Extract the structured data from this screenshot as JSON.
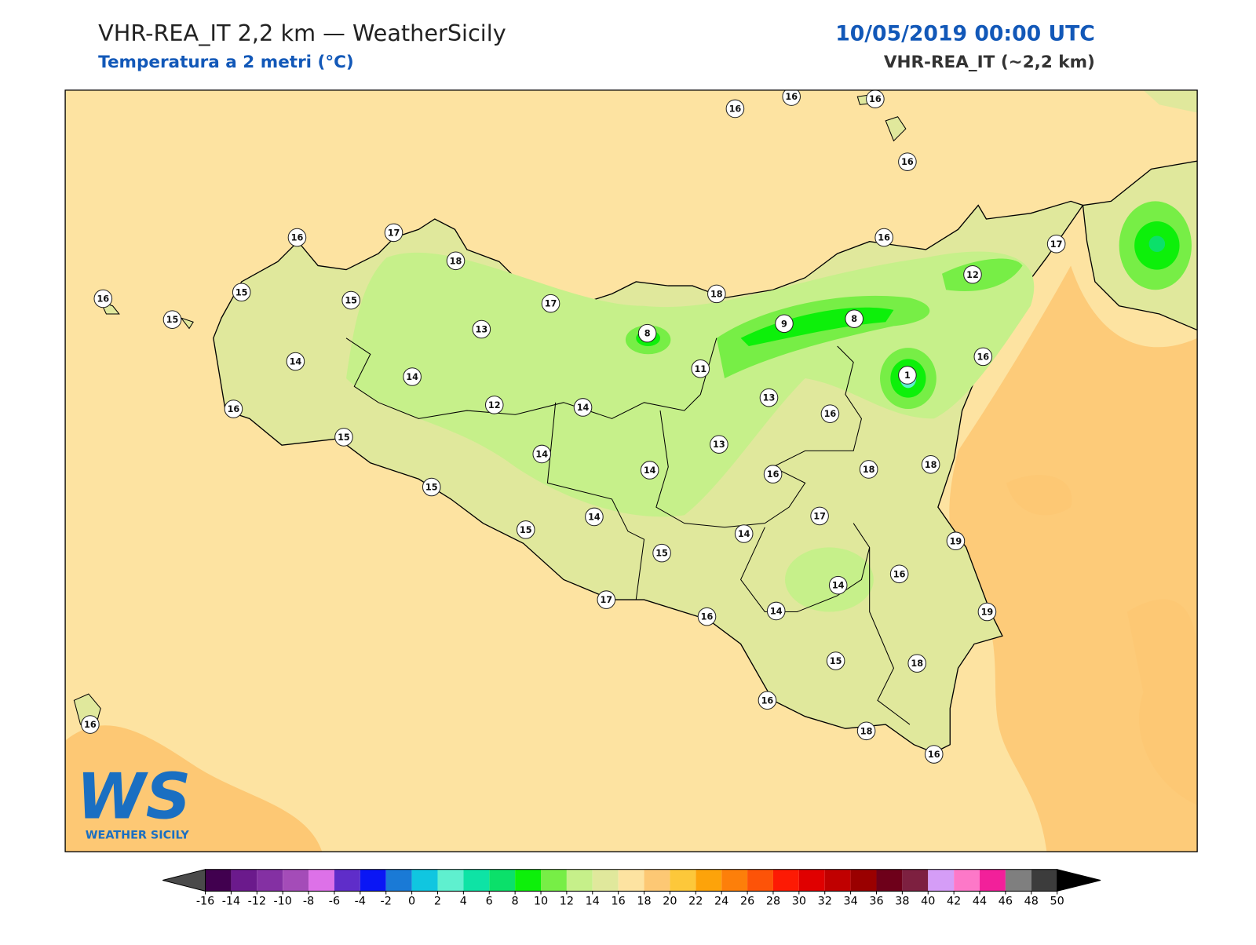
{
  "header": {
    "title": "VHR-REA_IT 2,2 km — WeatherSicily",
    "subtitle": "Temperatura a 2 metri (°C)",
    "datetime": "10/05/2019 00:00 UTC",
    "model": "VHR-REA_IT (~2,2 km)"
  },
  "stations": [
    16,
    16,
    16,
    16,
    16,
    15,
    15,
    16,
    15,
    17,
    18,
    14,
    14,
    13,
    16,
    15,
    12,
    17,
    8,
    18,
    9,
    8,
    16,
    12,
    17,
    16,
    1,
    11,
    14,
    13,
    16,
    13,
    14,
    14,
    16,
    18,
    18,
    15,
    14,
    17,
    15,
    14,
    15,
    19,
    16,
    14,
    14,
    19,
    17,
    16,
    15,
    18,
    16,
    18,
    16,
    16
  ],
  "colorbar": {
    "ticks": [
      -16,
      -14,
      -12,
      -10,
      -8,
      -6,
      -4,
      -2,
      0,
      2,
      4,
      6,
      8,
      10,
      12,
      14,
      16,
      18,
      20,
      22,
      24,
      26,
      28,
      30,
      32,
      34,
      36,
      38,
      40,
      42,
      44,
      46,
      48,
      50
    ],
    "colors": [
      "#41004f",
      "#6b1a8c",
      "#8430a3",
      "#a44cb8",
      "#dd71e8",
      "#5f2dc9",
      "#0a16f5",
      "#1a7ad6",
      "#10c6e0",
      "#5ff0cf",
      "#0ee3a5",
      "#0be06a",
      "#0df00a",
      "#77ee46",
      "#c6f08a",
      "#e0e89c",
      "#fde3a1",
      "#fdc874",
      "#fdc83a",
      "#fda30a",
      "#fd7f0a",
      "#fd5308",
      "#fd1a04",
      "#e00000",
      "#c00000",
      "#9a0000",
      "#6e001a",
      "#7d2040",
      "#d59df7",
      "#fd78c8",
      "#f2209a",
      "#7f7f7f",
      "#3c3c3c"
    ],
    "under_color": "#4a4a4a",
    "over_color": "#000000"
  },
  "logo": {
    "mark": "WS",
    "name": "WEATHER SICILY"
  }
}
